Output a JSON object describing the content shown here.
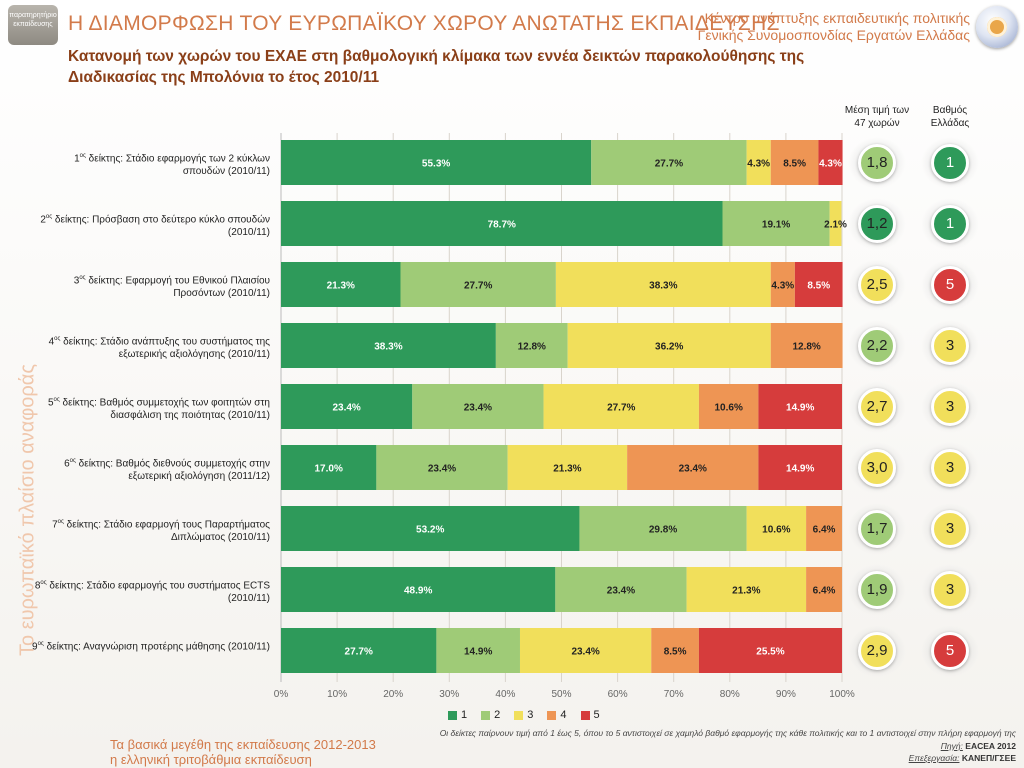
{
  "header": {
    "title": "Η ΔΙΑΜΟΡΦΩΣΗ ΤΟΥ ΕΥΡΩΠΑΪΚΟΥ ΧΩΡΟΥ ΑΝΩΤΑΤΗΣ ΕΚΠΑΙΔΕΥΣΗΣ",
    "org_line1": "Κέντρο ανάπτυξης εκπαιδευτικής πολιτικής",
    "org_line2": "Γενικής Συνομοσπονδίας Εργατών Ελλάδας",
    "subtitle": "Κατανομή των χωρών του ΕΧΑΕ στη βαθμολογική κλίμακα των εννέα δεικτών παρακολούθησης της Διαδικασίας της Μπολόνια το έτος 2010/11",
    "logo_left_text": "παρατηρητήριο εκπαίδευσης"
  },
  "side_caption": "Το ευρωπαϊκό πλαίσιο αναφοράς",
  "columns": {
    "mean_header": "Μέση τιμή των 47 χωρών",
    "grade_header": "Βαθμός Ελλάδας"
  },
  "rows": [
    {
      "ord": "1",
      "sup": "ος",
      "label": " δείκτης: Στάδιο εφαρμογής των 2 κύκλων σπουδών (2010/11)",
      "mean": "1,8",
      "grade": "1"
    },
    {
      "ord": "2",
      "sup": "ος",
      "label": " δείκτης: Πρόσβαση στο δεύτερο κύκλο σπουδών (2010/11)",
      "mean": "1,2",
      "grade": "1"
    },
    {
      "ord": "3",
      "sup": "ος",
      "label": " δείκτης: Εφαρμογή του Εθνικού Πλαισίου Προσόντων (2010/11)",
      "mean": "2,5",
      "grade": "5"
    },
    {
      "ord": "4",
      "sup": "ος",
      "label": " δείκτης: Στάδιο ανάπτυξης του συστήματος της εξωτερικής αξιολόγησης (2010/11)",
      "mean": "2,2",
      "grade": "3"
    },
    {
      "ord": "5",
      "sup": "ος",
      "label": " δείκτης: Βαθμός συμμετοχής των φοιτητών στη διασφάλιση της ποιότητας (2010/11)",
      "mean": "2,7",
      "grade": "3"
    },
    {
      "ord": "6",
      "sup": "ος",
      "label": " δείκτης: Βαθμός διεθνούς συμμετοχής στην εξωτερική αξιολόγηση (2011/12)",
      "mean": "3,0",
      "grade": "3"
    },
    {
      "ord": "7",
      "sup": "ος",
      "label": " δείκτης: Στάδιο εφαρμογή τους Παραρτήματος Διπλώματος (2010/11)",
      "mean": "1,7",
      "grade": "3"
    },
    {
      "ord": "8",
      "sup": "ος",
      "label": " δείκτης: Στάδιο εφαρμογής του συστήματος ECTS (2010/11)",
      "mean": "1,9",
      "grade": "3"
    },
    {
      "ord": "9",
      "sup": "ος",
      "label": " δείκτης: Αναγνώριση προτέρης μάθησης (2010/11)",
      "mean": "2,9",
      "grade": "5"
    }
  ],
  "chart_data": {
    "type": "bar",
    "orientation": "horizontal",
    "stacked": "percent",
    "categories": [
      "1ος δείκτης: Στάδιο εφαρμογής των 2 κύκλων σπουδών (2010/11)",
      "2ος δείκτης: Πρόσβαση στο δεύτερο κύκλο σπουδών (2010/11)",
      "3ος δείκτης: Εφαρμογή του Εθνικού Πλαισίου Προσόντων (2010/11)",
      "4ος δείκτης: Στάδιο ανάπτυξης του συστήματος της εξωτερικής αξιολόγησης (2010/11)",
      "5ος δείκτης: Βαθμός συμμετοχής των φοιτητών στη διασφάλιση της ποιότητας (2010/11)",
      "6ος δείκτης: Βαθμός διεθνούς συμμετοχής στην εξωτερική αξιολόγηση (2011/12)",
      "7ος δείκτης: Στάδιο εφαρμογή τους Παραρτήματος Διπλώματος (2010/11)",
      "8ος δείκτης: Στάδιο εφαρμογής του συστήματος ECTS (2010/11)",
      "9ος δείκτης: Αναγνώριση προτέρης μάθησης (2010/11)"
    ],
    "series": [
      {
        "name": "1",
        "color": "#2e9a5a",
        "values": [
          55.3,
          78.7,
          21.3,
          38.3,
          23.4,
          17.0,
          53.2,
          48.9,
          27.7
        ]
      },
      {
        "name": "2",
        "color": "#9fcb77",
        "values": [
          27.7,
          19.1,
          27.7,
          12.8,
          23.4,
          23.4,
          29.8,
          23.4,
          14.9
        ]
      },
      {
        "name": "3",
        "color": "#f1df5b",
        "values": [
          4.3,
          2.1,
          38.3,
          36.2,
          27.7,
          21.3,
          10.6,
          21.3,
          23.4
        ]
      },
      {
        "name": "4",
        "color": "#ee9554",
        "values": [
          8.5,
          0,
          4.3,
          12.8,
          10.6,
          23.4,
          6.4,
          6.4,
          8.5
        ]
      },
      {
        "name": "5",
        "color": "#d63c3c",
        "values": [
          4.3,
          0,
          8.5,
          0,
          14.9,
          14.9,
          0,
          0,
          25.5
        ]
      }
    ],
    "data_labels": [
      [
        "55.3%",
        "27.7%",
        "4.3%",
        "8.5%",
        "4.3%"
      ],
      [
        "78.7%",
        "19.1%",
        "2.1%",
        "",
        ""
      ],
      [
        "21.3%",
        "27.7%",
        "38.3%",
        "4.3%",
        "8.5%"
      ],
      [
        "38.3%",
        "12.8%",
        "36.2%",
        "12.8%",
        ""
      ],
      [
        "23.4%",
        "23.4%",
        "27.7%",
        "10.6%",
        "14.9%"
      ],
      [
        "17.0%",
        "23.4%",
        "21.3%",
        "23.4%",
        "14.9%"
      ],
      [
        "53.2%",
        "29.8%",
        "10.6%",
        "6.4%",
        ""
      ],
      [
        "48.9%",
        "23.4%",
        "21.3%",
        "6.4%",
        ""
      ],
      [
        "27.7%",
        "14.9%",
        "23.4%",
        "8.5%",
        "25.5%"
      ]
    ],
    "xlim": [
      0,
      100
    ],
    "xticks": [
      "0%",
      "10%",
      "20%",
      "30%",
      "40%",
      "50%",
      "60%",
      "70%",
      "80%",
      "90%",
      "100%"
    ],
    "legend_position": "bottom"
  },
  "score_colors": {
    "1": "#2e9a5a",
    "2": "#9fcb77",
    "3": "#f1df5b",
    "4": "#ee9554",
    "5": "#d63c3c"
  },
  "footnote": "Οι δείκτες παίρνουν τιμή από 1 έως 5, όπου το 5 αντιστοιχεί σε χαμηλό βαθμό εφαρμογής της κάθε πολιτικής και το 1 αντιστοιχεί στην πλήρη εφαρμογή της",
  "source": {
    "label": "Πηγή:",
    "value": "EACEA 2012"
  },
  "processing": {
    "label": "Επεξεργασία:",
    "value": "ΚΑΝΕΠ/ΓΣΕΕ"
  },
  "bottom_title": {
    "line1": "Τα βασικά μεγέθη της εκπαίδευσης 2012-2013",
    "line2": "η ελληνική τριτοβάθμια εκπαίδευση"
  }
}
